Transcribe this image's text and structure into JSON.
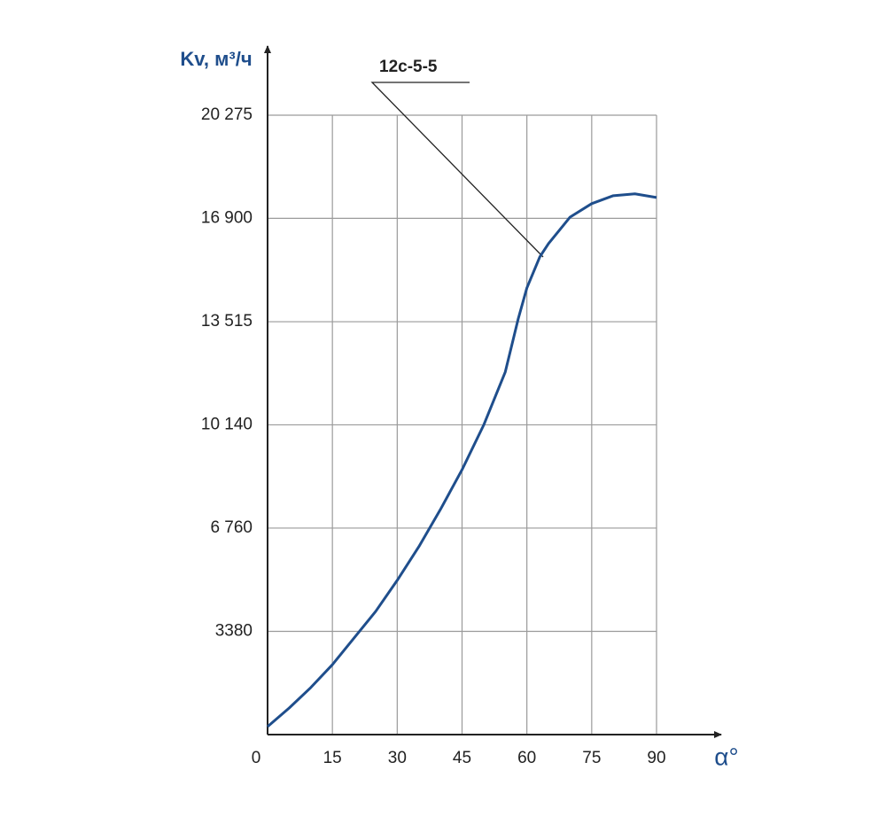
{
  "chart_data": {
    "type": "line",
    "y_label": "Kv, м³/ч",
    "x_label": "α°",
    "annotation": "12c-5-5",
    "x": [
      0,
      5,
      10,
      15,
      20,
      25,
      30,
      35,
      40,
      45,
      50,
      55,
      58,
      60,
      63,
      65,
      70,
      75,
      80,
      85,
      90
    ],
    "series": [
      {
        "name": "12c-5-5",
        "color": "#1f4e8c",
        "values": [
          260,
          870,
          1540,
          2290,
          3160,
          4030,
          5050,
          6150,
          7370,
          8670,
          10130,
          11870,
          13610,
          14620,
          15640,
          16070,
          16940,
          17380,
          17640,
          17700,
          17580
        ]
      }
    ],
    "xlim": [
      0,
      90
    ],
    "xticks": [
      0,
      15,
      30,
      45,
      60,
      75,
      90
    ],
    "ylim": [
      0,
      20275
    ],
    "yticks": [
      3380,
      {
        "value": 6760,
        "label": "6 760"
      },
      {
        "value": 10140,
        "label": "10 140"
      },
      {
        "value": 13515,
        "label": "13 515"
      },
      {
        "value": 16900,
        "label": "16 900"
      },
      {
        "value": 20275,
        "label": "20 275"
      }
    ],
    "grid": true
  }
}
